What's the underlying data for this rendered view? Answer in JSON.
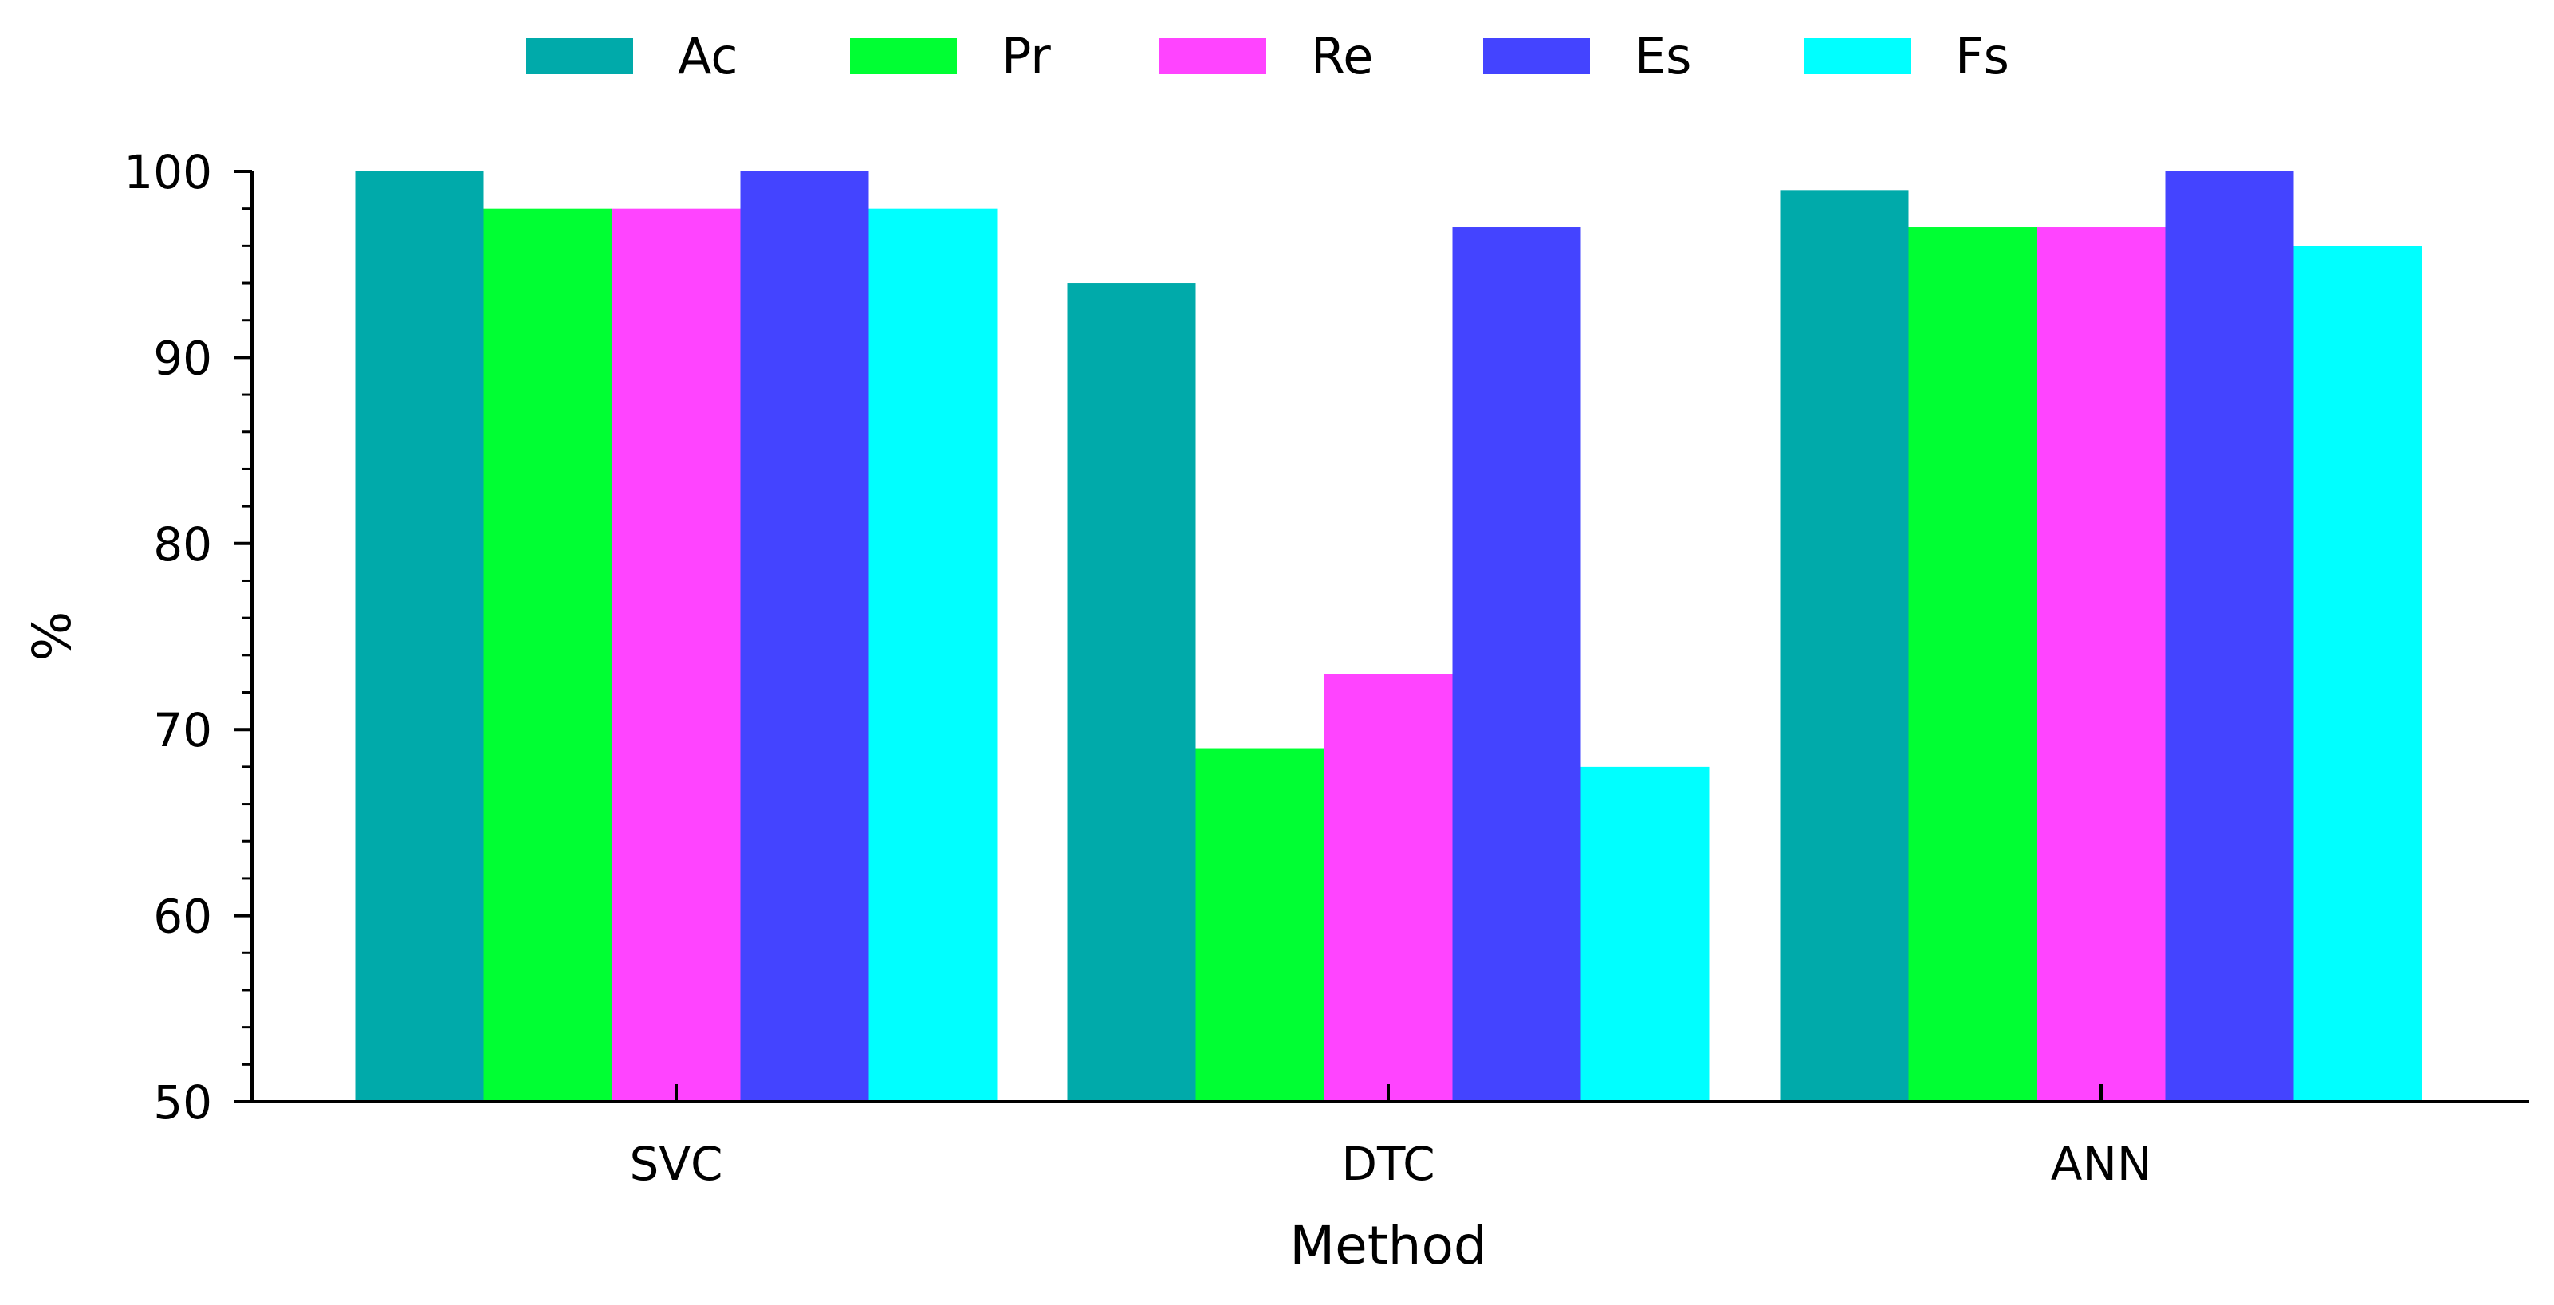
{
  "chart_data": {
    "type": "bar",
    "categories": [
      "SVC",
      "DTC",
      "ANN"
    ],
    "series": [
      {
        "name": "Ac",
        "color": "#00AAAA",
        "values": [
          100,
          94,
          99
        ]
      },
      {
        "name": "Pr",
        "color": "#00FF33",
        "values": [
          98,
          69,
          97
        ]
      },
      {
        "name": "Re",
        "color": "#FF44FF",
        "values": [
          98,
          73,
          97
        ]
      },
      {
        "name": "Es",
        "color": "#4444FF",
        "values": [
          100,
          97,
          100
        ]
      },
      {
        "name": "Fs",
        "color": "#00FFFF",
        "values": [
          98,
          68,
          96
        ]
      }
    ],
    "xlabel": "Method",
    "ylabel": "%",
    "ylim": [
      50,
      100
    ],
    "yticks": [
      50,
      60,
      70,
      80,
      90,
      100
    ],
    "grid": false,
    "legend": "top-center"
  }
}
